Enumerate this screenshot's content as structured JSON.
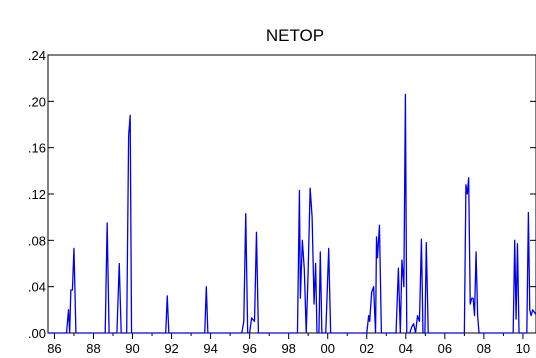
{
  "chart_data": {
    "type": "line",
    "title": "NETOP",
    "xlabel": "",
    "ylabel": "",
    "xlim": [
      1985.67,
      2010.67
    ],
    "ylim": [
      0,
      0.24
    ],
    "y_ticks": [
      0,
      0.04,
      0.08,
      0.12,
      0.16,
      0.2,
      0.24
    ],
    "y_tick_labels": [
      ".00",
      ".04",
      ".08",
      ".12",
      ".16",
      ".20",
      ".24"
    ],
    "x_ticks": [
      1986,
      1988,
      1990,
      1992,
      1994,
      1996,
      1998,
      2000,
      2002,
      2004,
      2006,
      2008,
      2010
    ],
    "x_tick_labels": [
      "86",
      "88",
      "90",
      "92",
      "94",
      "96",
      "98",
      "00",
      "02",
      "04",
      "06",
      "08",
      "10"
    ],
    "grid": false,
    "legend": "none",
    "series_color": "#0000ee",
    "series": [
      {
        "x": [
          1985.67,
          1986.62,
          1986.72,
          1986.78,
          1986.84,
          1986.92,
          1987.0,
          1987.1,
          1987.2,
          1988.6,
          1988.7,
          1988.8,
          1988.9,
          1989.2,
          1989.32,
          1989.42,
          1989.55,
          1989.7,
          1989.8,
          1989.88,
          1989.95,
          1990.05,
          1990.15,
          1991.7,
          1991.78,
          1991.86,
          1993.7,
          1993.78,
          1993.86,
          1995.6,
          1995.7,
          1995.8,
          1995.9,
          1996.0,
          1996.1,
          1996.25,
          1996.35,
          1996.45,
          1996.55,
          1996.62,
          1996.72,
          1998.45,
          1998.55,
          1998.6,
          1998.7,
          1998.8,
          1998.9,
          1999.0,
          1999.1,
          1999.2,
          1999.3,
          1999.38,
          1999.45,
          1999.55,
          1999.62,
          1999.7,
          1999.78,
          1999.85,
          1999.9,
          2000.05,
          2000.15,
          2000.2,
          2000.3,
          2000.4,
          2000.5,
          2000.6,
          2000.7,
          2002.0,
          2002.1,
          2002.15,
          2002.25,
          2002.35,
          2002.45,
          2002.5,
          2002.55,
          2002.65,
          2002.75,
          2002.8,
          2002.9,
          2003.5,
          2003.62,
          2003.72,
          2003.8,
          2003.9,
          2003.98,
          2004.05,
          2004.12,
          2004.2,
          2004.3,
          2004.4,
          2004.5,
          2004.6,
          2004.7,
          2004.8,
          2004.88,
          2004.98,
          2005.05,
          2005.15,
          2005.25,
          2005.35,
          2005.45,
          2005.55,
          2005.65,
          2005.75,
          2007.0,
          2007.08,
          2007.15,
          2007.22,
          2007.3,
          2007.38,
          2007.45,
          2007.52,
          2007.6,
          2007.68,
          2007.75,
          2007.82,
          2007.9,
          2007.98,
          2008.05,
          2008.12,
          2009.5,
          2009.58,
          2009.65,
          2009.72,
          2009.8,
          2009.88,
          2009.95,
          2010.2,
          2010.28,
          2010.35,
          2010.42,
          2010.5,
          2010.58,
          2010.67
        ],
        "y": [
          0,
          0,
          0.02,
          0.0,
          0.037,
          0.037,
          0.073,
          0.0,
          0,
          0,
          0.095,
          0.0,
          0,
          0,
          0.06,
          0.0,
          0,
          0,
          0.17,
          0.188,
          0.0,
          0,
          0,
          0,
          0.032,
          0.0,
          0,
          0.04,
          0.0,
          0,
          0.01,
          0.103,
          0.0,
          0,
          0.013,
          0.01,
          0.087,
          0.0,
          0,
          0,
          0,
          0,
          0.123,
          0.03,
          0.08,
          0.055,
          0.0,
          0.055,
          0.125,
          0.1,
          0.025,
          0.06,
          0.0,
          0,
          0.07,
          0.0,
          0,
          0,
          0,
          0.073,
          0.0,
          0,
          0,
          0,
          0,
          0,
          0,
          0,
          0.015,
          0.01,
          0.035,
          0.04,
          0.0,
          0.083,
          0.065,
          0.093,
          0.0,
          0,
          0,
          0,
          0.056,
          0.0,
          0.063,
          0.04,
          0.206,
          0.0,
          0,
          0,
          0.005,
          0.008,
          0.0,
          0.015,
          0.01,
          0.081,
          0.0,
          0,
          0.078,
          0.0,
          0,
          0,
          0,
          0,
          0,
          0,
          0,
          0.128,
          0.12,
          0.134,
          0.025,
          0.03,
          0.03,
          0.015,
          0.07,
          0.015,
          0.0,
          0,
          0,
          0,
          0,
          0,
          0,
          0.08,
          0.012,
          0.077,
          0.0,
          0,
          0,
          0,
          0.104,
          0.02,
          0.015,
          0.02,
          0.018,
          0.016
        ]
      }
    ]
  }
}
